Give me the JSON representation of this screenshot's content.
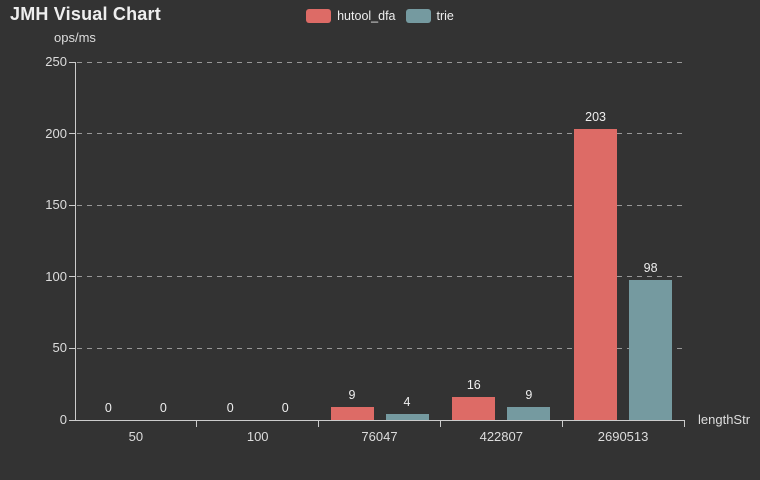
{
  "chart_data": {
    "type": "bar",
    "title": "JMH Visual Chart",
    "categories": [
      "50",
      "100",
      "76047",
      "422807",
      "2690513"
    ],
    "series": [
      {
        "name": "hutool_dfa",
        "color": "#dd6b66",
        "values": [
          0,
          0,
          9,
          16,
          203
        ]
      },
      {
        "name": "trie",
        "color": "#759aa0",
        "values": [
          0,
          0,
          4,
          9,
          98
        ]
      }
    ],
    "ylabel": "ops/ms",
    "xlabel": "lengthStr",
    "yticks": [
      0,
      50,
      100,
      150,
      200,
      250
    ],
    "ylim": [
      0,
      250
    ],
    "grid": true,
    "grid_style": "dashed",
    "legend_position": "top-center",
    "background": "#333333",
    "text_color": "#eeeeee",
    "grid_color": "#aaaaaa",
    "axis_color": "#cccccc"
  }
}
